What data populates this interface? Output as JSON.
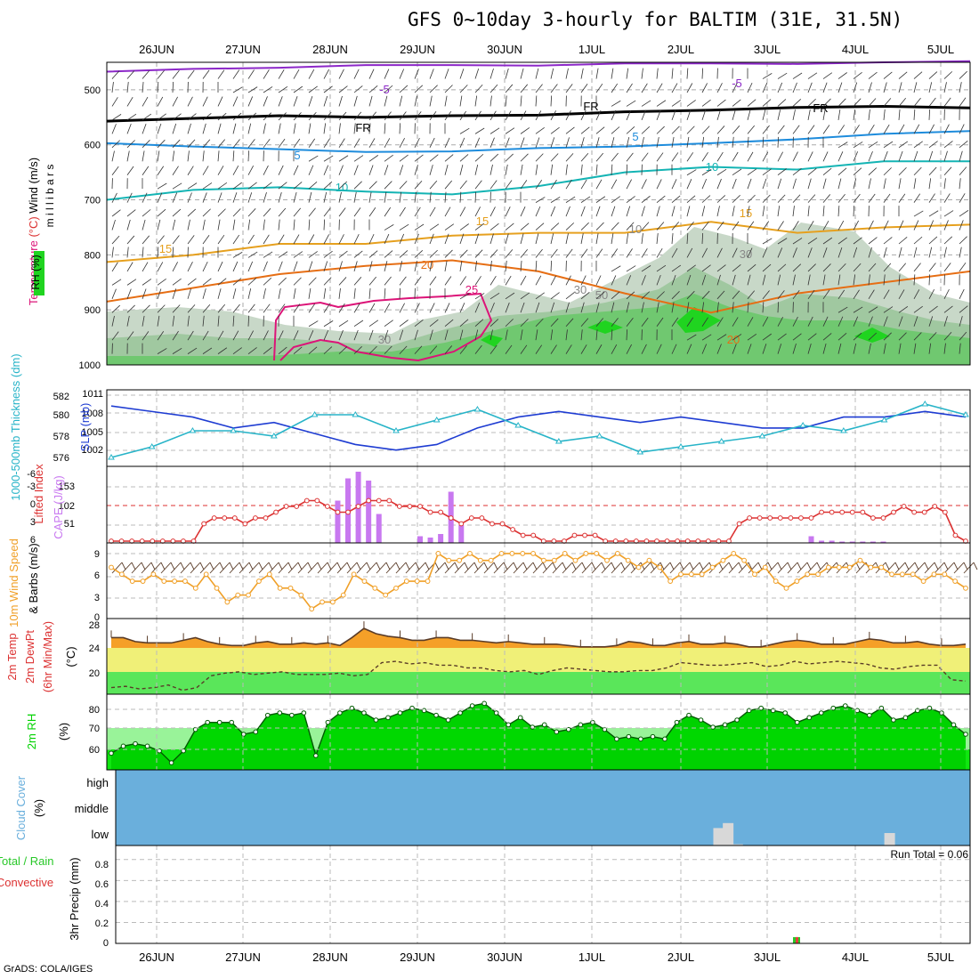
{
  "title": "GFS 0~10day 3-hourly for BALTIM (31E, 31.5N)",
  "credit": "GrADS: COLA/IGES",
  "dates": [
    "26JUN",
    "27JUN",
    "28JUN",
    "29JUN",
    "30JUN",
    "1JUL",
    "2JUL",
    "3JUL",
    "4JUL",
    "5JUL"
  ],
  "colors": {
    "purple": "#8c28c8",
    "black": "#000000",
    "blue5": "#1e8cdc",
    "cyan10": "#14b4b4",
    "orange15": "#e6a01e",
    "orange20": "#e66e14",
    "magenta25": "#dc1478",
    "slp": "#1e3cd2",
    "thickness": "#28b4c8",
    "lifted": "#dc3232",
    "cape": "#c878f0",
    "wind10m": "#f0a028",
    "temp2m": "#f5a028",
    "rh": "#00d200",
    "cloud": "#6aafdc"
  },
  "chart_data": [
    {
      "panel": "upper-air",
      "type": "contour",
      "ylabel_parts": [
        "RH (%)",
        "Temperature (°C)",
        "Wind (m/s)"
      ],
      "yaxis_title": "millibars",
      "yticks": [
        "500",
        "600",
        "700",
        "800",
        "900",
        "1000"
      ],
      "ylim": [
        1000,
        450
      ],
      "contour_labels": [
        "-5",
        "FR",
        "5",
        "10",
        "15",
        "20",
        "25",
        "30",
        "50",
        "70",
        "20"
      ],
      "isotherms": [
        {
          "name": "-5",
          "level": [
            467,
            462,
            460,
            455,
            455,
            456,
            452,
            452,
            453,
            450,
            448
          ]
        },
        {
          "name": "FR",
          "level": [
            557,
            552,
            547,
            550,
            547,
            546,
            540,
            537,
            532,
            530,
            533
          ]
        },
        {
          "name": "5",
          "level": [
            597,
            603,
            608,
            613,
            612,
            606,
            603,
            597,
            590,
            580,
            575
          ]
        },
        {
          "name": "10",
          "level": [
            700,
            682,
            677,
            685,
            690,
            675,
            650,
            640,
            645,
            630,
            630
          ]
        },
        {
          "name": "15",
          "level": [
            813,
            800,
            780,
            780,
            765,
            760,
            760,
            740,
            760,
            750,
            745
          ]
        },
        {
          "name": "20",
          "level": [
            885,
            860,
            835,
            820,
            810,
            830,
            870,
            905,
            870,
            850,
            830
          ]
        }
      ]
    },
    {
      "panel": "slp-thickness",
      "type": "line",
      "ylabel_left": "1000-500mb Thickness (dm)",
      "ylabel_right": "SLP (mb)",
      "yticks_left": [
        "582",
        "580",
        "578",
        "576"
      ],
      "yticks_right": [
        "1011",
        "1008",
        "1005",
        "1002"
      ],
      "series": [
        {
          "name": "SLP (mb)",
          "values": [
            1010,
            1009,
            1008,
            1006,
            1007,
            1005,
            1003,
            1002,
            1003,
            1006,
            1008,
            1009,
            1008,
            1007,
            1008,
            1007,
            1006,
            1006,
            1008,
            1008,
            1009,
            1008
          ]
        },
        {
          "name": "1000-500mb Thickness (dm)",
          "values": [
            576.5,
            577.5,
            579,
            579,
            578.5,
            580.5,
            580.5,
            579,
            580,
            581,
            579.5,
            578,
            578.5,
            577,
            577.5,
            578,
            578.5,
            579.5,
            579,
            580,
            581.5,
            580.5
          ]
        }
      ]
    },
    {
      "panel": "cape-lifted-index",
      "type": "bar",
      "ylabel_left": "Lifted Index",
      "ylabel_right": "CAPE (J/kg)",
      "yticks_left": [
        "-6",
        "-3",
        "0",
        "3",
        "6"
      ],
      "yticks_right": [
        "153",
        "102",
        "51"
      ],
      "series": [
        {
          "name": "CAPE (J/kg)",
          "values": [
            0,
            0,
            0,
            0,
            0,
            0,
            0,
            0,
            5,
            0,
            0,
            0,
            0,
            0,
            0,
            0,
            0,
            0,
            0,
            0,
            0,
            0,
            95,
            145,
            160,
            140,
            65,
            0,
            0,
            0,
            15,
            12,
            20,
            115,
            40,
            0,
            0,
            0,
            0,
            0,
            0,
            0,
            0,
            0,
            0,
            0,
            0,
            0,
            0,
            0,
            0,
            0,
            0,
            0,
            0,
            0,
            0,
            0,
            0,
            0,
            0,
            0,
            0,
            0,
            0,
            0,
            0,
            0,
            15,
            5,
            5,
            3,
            3,
            3,
            3,
            3,
            0,
            0,
            0,
            0,
            0,
            0,
            0,
            0
          ]
        },
        {
          "name": "Lifted Index",
          "values": [
            6,
            6,
            6,
            6,
            6,
            6,
            6,
            6,
            6,
            3,
            2,
            2,
            2,
            3,
            2,
            2,
            1,
            0,
            0,
            -1,
            -1,
            0,
            1,
            1,
            0,
            -1,
            -1,
            -1,
            0,
            0,
            0,
            1,
            1,
            2,
            3,
            2,
            2,
            3,
            3,
            4,
            5,
            5,
            6,
            6,
            6,
            5,
            5,
            5,
            6,
            6,
            6,
            6,
            6,
            6,
            6,
            6,
            6,
            6,
            6,
            6,
            6,
            3,
            2,
            2,
            2,
            2,
            2,
            2,
            2,
            1,
            1,
            1,
            1,
            1,
            2,
            2,
            1,
            0,
            1,
            1,
            0,
            1,
            5,
            6
          ]
        }
      ]
    },
    {
      "panel": "wind-10m",
      "type": "line",
      "ylabel_left": "10m Wind Speed",
      "ylabel_right": "& Barbs (m/s)",
      "yticks_right": [
        "9",
        "6",
        "3",
        "0"
      ],
      "series": [
        {
          "name": "10m Wind Speed",
          "values": [
            7,
            6,
            5,
            5,
            6,
            5,
            5,
            5,
            4,
            6,
            4,
            2,
            3,
            3,
            5,
            6,
            4,
            4,
            3,
            1,
            2,
            2,
            3,
            6,
            5,
            4,
            3,
            4,
            5,
            5,
            5,
            9,
            8,
            8,
            9,
            8,
            8,
            9,
            9,
            9,
            9,
            8,
            8,
            9,
            8,
            9,
            9,
            8,
            9,
            8,
            7,
            8,
            7,
            5,
            6,
            6,
            6,
            7,
            8,
            9,
            8,
            6,
            7,
            5,
            4,
            5,
            6,
            6,
            7,
            7,
            7,
            8,
            7,
            7,
            6,
            6,
            6,
            5,
            6,
            6,
            5,
            4
          ]
        }
      ]
    },
    {
      "panel": "temp-2m",
      "type": "area",
      "ylabel_left": "2m Temp",
      "ylabel_left2": "2m DewPt",
      "ylabel_left3": "(6hr Min/Max)",
      "ylabel_right": "(°C)",
      "yticks": [
        "28",
        "24",
        "20"
      ],
      "series": [
        {
          "name": "2m Temp",
          "values": [
            25.6,
            25.6,
            25,
            24.8,
            24.8,
            24.8,
            25.2,
            25.6,
            25,
            24.6,
            24.4,
            24.4,
            24.8,
            25,
            24.6,
            24.6,
            24.8,
            24.6,
            24.8,
            24.4,
            25.6,
            27,
            26.2,
            25.8,
            25.6,
            25.2,
            25.2,
            25.6,
            25.6,
            25.2,
            25.2,
            25,
            24.8,
            25,
            24.8,
            24.6,
            24.6,
            24.6,
            24.4,
            24.2,
            24.2,
            24.2,
            24.4,
            25,
            24.8,
            24.4,
            24.4,
            24.8,
            25,
            24.6,
            24.6,
            24.8,
            24.6,
            24.2,
            24.2,
            24.6,
            25,
            25.2,
            25,
            24.6,
            24.6,
            24.6,
            25,
            25.4,
            25.2,
            24.8,
            24.8,
            25,
            24.6,
            24.4,
            24.4,
            24.6
          ]
        },
        {
          "name": "2m DewPt",
          "values": [
            18,
            18.2,
            17.8,
            18,
            18.4,
            17.6,
            18,
            19.8,
            20.2,
            20.4,
            20,
            20.2,
            20.4,
            20,
            20,
            20,
            20.2,
            19.8,
            20,
            21.8,
            22,
            21.6,
            21.8,
            21.4,
            21.4,
            21,
            21,
            20.6,
            20.4,
            20.6,
            20,
            20.6,
            21,
            20.8,
            20.6,
            20.4,
            20.4,
            20.6,
            20.6,
            21,
            21.8,
            21.6,
            21.4,
            21.4,
            21.6,
            21.8,
            21.2,
            21.4,
            22,
            21.6,
            21.8,
            22,
            21.8,
            21.6,
            21,
            20.8,
            21.2,
            21.4,
            21.4,
            19.2,
            19
          ]
        }
      ]
    },
    {
      "panel": "rh-2m",
      "type": "area",
      "ylabel_left": "2m RH",
      "ylabel_right": "(%)",
      "yticks": [
        "80",
        "70",
        "60"
      ],
      "series": [
        {
          "name": "2m RH",
          "values": [
            62,
            65,
            66,
            65,
            63,
            58,
            63,
            72,
            75,
            75,
            75,
            70,
            71,
            78,
            79,
            78,
            79,
            61,
            75,
            79,
            81,
            79,
            76,
            77,
            79,
            81,
            80,
            78,
            76,
            79,
            82,
            83,
            79,
            74,
            77,
            73,
            74,
            71,
            72,
            74,
            75,
            72,
            68,
            69,
            68,
            69,
            68,
            75,
            78,
            76,
            73,
            74,
            76,
            80,
            81,
            80,
            79,
            75,
            77,
            79,
            81,
            82,
            80,
            78,
            81,
            76,
            77,
            80,
            81,
            79,
            74,
            70
          ]
        }
      ]
    },
    {
      "panel": "cloud-cover",
      "type": "bar",
      "ylabel_left": "Cloud Cover",
      "ylabel_right": "(%)",
      "yticks": [
        "high",
        "middle",
        "low"
      ],
      "series": [
        {
          "name": "low",
          "values": [
            0,
            0,
            0,
            0,
            0,
            0,
            0,
            0,
            0,
            0,
            0,
            0,
            0,
            0,
            0,
            0,
            0,
            0,
            0,
            0,
            0,
            0,
            0,
            0,
            0,
            0,
            0,
            0,
            0,
            0,
            0,
            0,
            0,
            0,
            0,
            0,
            0,
            0,
            0,
            0,
            0,
            0,
            0,
            0,
            0,
            0,
            0,
            0,
            0,
            0,
            0,
            0,
            0,
            0,
            0,
            0,
            0,
            0,
            0,
            0,
            0,
            0,
            0,
            70,
            90,
            5,
            0,
            0,
            0,
            0,
            0,
            0,
            0,
            0,
            0,
            0,
            0,
            0,
            0,
            0,
            0,
            50,
            0,
            0,
            0,
            0,
            0,
            0,
            0,
            0
          ]
        }
      ]
    },
    {
      "panel": "precip-3hr",
      "type": "bar",
      "ylabel_left": "Total / Rain",
      "ylabel_left2": "Convective",
      "ylabel_right": "3hr Precip (mm)",
      "yticks": [
        "0.8",
        "0.6",
        "0.4",
        "0.2",
        "0"
      ],
      "ylim": [
        0,
        0.9
      ],
      "annotation": "Run Total = 0.06",
      "series": [
        {
          "name": "Total",
          "values": [
            0,
            0,
            0,
            0,
            0,
            0,
            0,
            0,
            0,
            0,
            0,
            0,
            0,
            0,
            0,
            0,
            0,
            0,
            0,
            0,
            0,
            0,
            0,
            0,
            0,
            0,
            0,
            0,
            0,
            0,
            0,
            0,
            0,
            0,
            0,
            0,
            0,
            0,
            0,
            0,
            0,
            0,
            0,
            0,
            0,
            0,
            0,
            0,
            0,
            0,
            0,
            0,
            0,
            0,
            0,
            0,
            0,
            0,
            0,
            0,
            0,
            0,
            0,
            0,
            0.06,
            0,
            0,
            0,
            0,
            0,
            0,
            0,
            0,
            0,
            0,
            0,
            0,
            0,
            0,
            0,
            0
          ]
        }
      ]
    }
  ]
}
